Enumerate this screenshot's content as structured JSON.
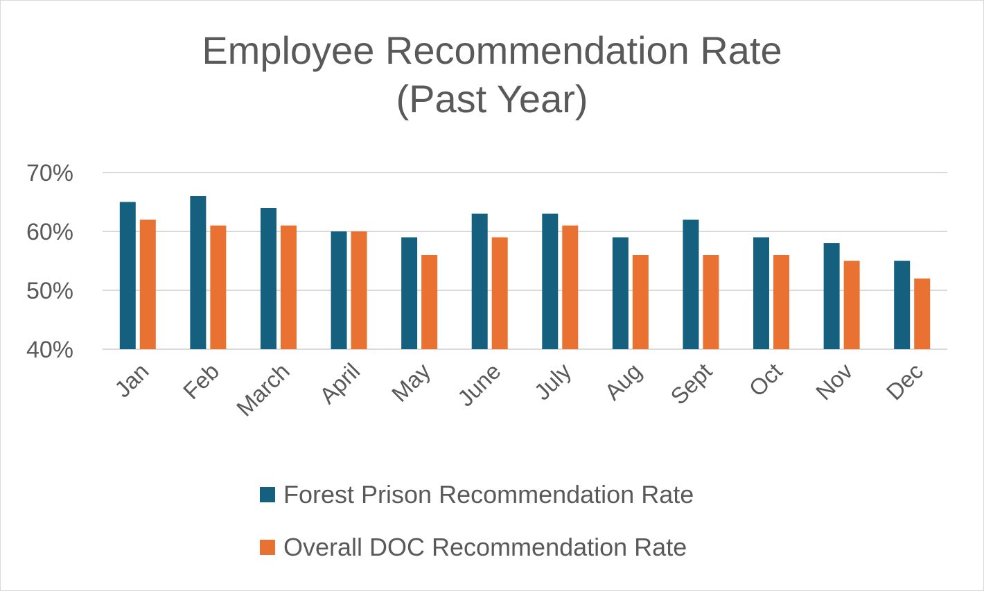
{
  "chart_data": {
    "type": "bar",
    "title": "Employee Recommendation Rate (Past Year)",
    "title_lines": [
      "Employee Recommendation Rate",
      "(Past Year)"
    ],
    "categories": [
      "Jan",
      "Feb",
      "March",
      "April",
      "May",
      "June",
      "July",
      "Aug",
      "Sept",
      "Oct",
      "Nov",
      "Dec"
    ],
    "series": [
      {
        "name": "Forest Prison Recommendation Rate",
        "color": "#16607f",
        "values": [
          0.65,
          0.66,
          0.64,
          0.6,
          0.59,
          0.63,
          0.63,
          0.59,
          0.62,
          0.59,
          0.58,
          0.55
        ]
      },
      {
        "name": "Overall DOC Recommendation Rate",
        "color": "#e97132",
        "values": [
          0.62,
          0.61,
          0.61,
          0.6,
          0.56,
          0.59,
          0.61,
          0.56,
          0.56,
          0.56,
          0.55,
          0.52
        ]
      }
    ],
    "ylim": [
      0.4,
      0.7
    ],
    "yticks": [
      0.4,
      0.5,
      0.6,
      0.7
    ],
    "ytick_labels": [
      "40%",
      "50%",
      "60%",
      "70%"
    ],
    "xlabel": "",
    "ylabel": "",
    "grid": true,
    "legend_position": "bottom"
  }
}
